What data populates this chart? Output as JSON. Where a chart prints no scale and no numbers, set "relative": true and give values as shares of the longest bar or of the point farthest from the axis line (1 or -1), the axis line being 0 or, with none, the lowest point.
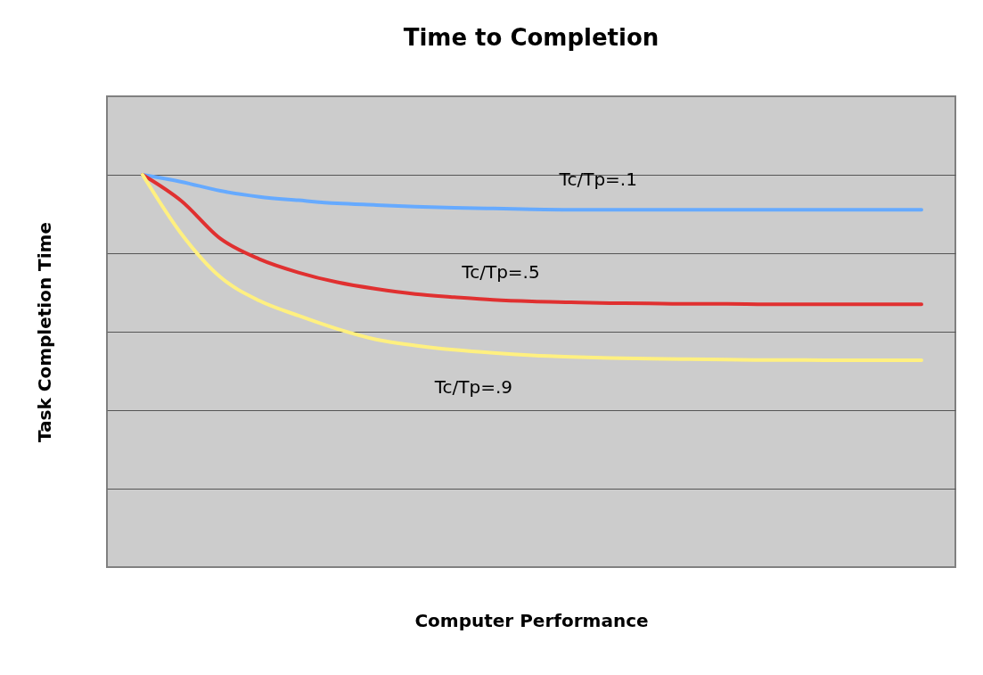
{
  "chart_data": {
    "type": "line",
    "title": "Time to Completion",
    "xlabel": "Computer Performance",
    "ylabel": "Task Completion Time",
    "relative": true,
    "grid": "y",
    "legend": false,
    "marker": "none",
    "line_style": "solid",
    "categories": [
      null,
      null,
      null,
      null,
      null,
      null,
      null,
      null,
      null,
      null,
      null,
      null,
      null,
      null,
      null,
      null,
      null,
      null,
      null,
      null,
      null
    ],
    "series": [
      {
        "name": "Tc/Tp=.1",
        "color": "#66aaff",
        "values": [
          1,
          0.982,
          0.959,
          0.944,
          0.935,
          0.927,
          0.923,
          0.919,
          0.916,
          0.914,
          0.912,
          0.911,
          0.911,
          0.911,
          0.911,
          0.911,
          0.911,
          0.911,
          0.911,
          0.911,
          0.911
        ]
      },
      {
        "name": "Tc/Tp=.5",
        "color": "#e03030",
        "values": [
          1,
          0.933,
          0.837,
          0.785,
          0.751,
          0.726,
          0.709,
          0.696,
          0.688,
          0.681,
          0.677,
          0.675,
          0.673,
          0.672,
          0.671,
          0.671,
          0.67,
          0.67,
          0.67,
          0.67,
          0.67
        ]
      },
      {
        "name": "Tc/Tp=.9",
        "color": "#fff080",
        "values": [
          1,
          0.849,
          0.739,
          0.679,
          0.641,
          0.607,
          0.58,
          0.565,
          0.554,
          0.546,
          0.54,
          0.536,
          0.533,
          0.531,
          0.53,
          0.529,
          0.528,
          0.528,
          0.527,
          0.527,
          0.527
        ]
      }
    ]
  }
}
